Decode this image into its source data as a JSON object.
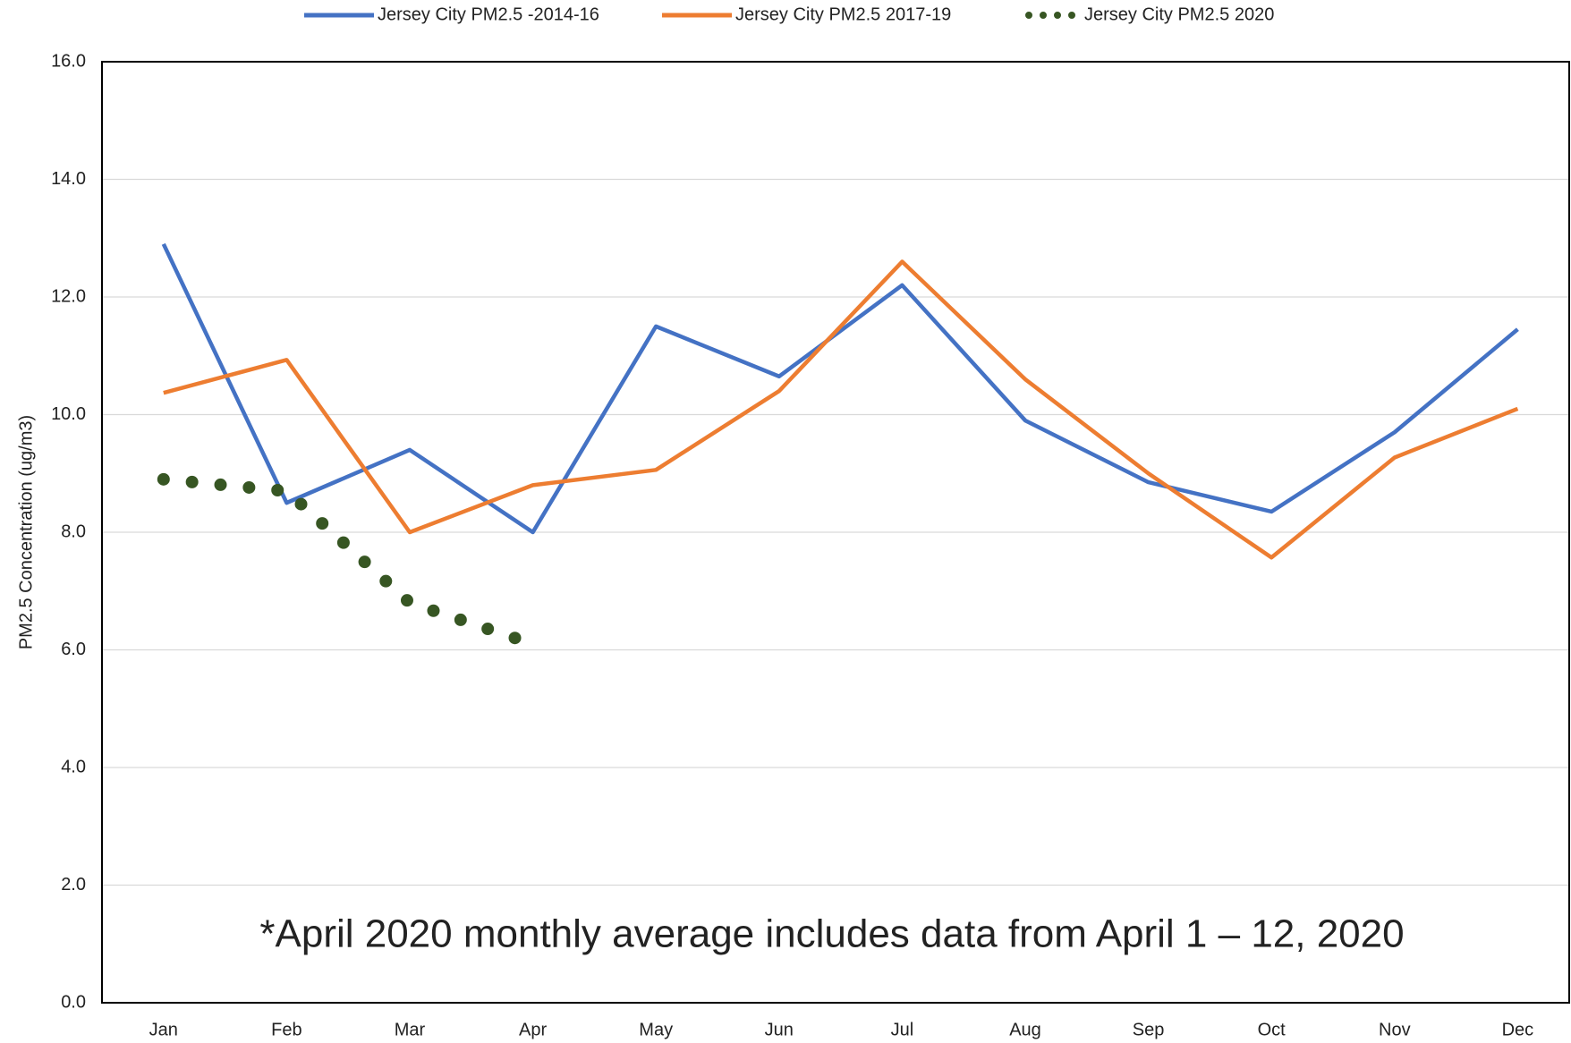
{
  "chart_data": {
    "type": "line",
    "annotation": "*April 2020 monthly average includes data from April 1 – 12, 2020",
    "y_label": "PM2.5 Concentration (ug/m3)",
    "categories": [
      "Jan",
      "Feb",
      "Mar",
      "Apr",
      "May",
      "Jun",
      "Jul",
      "Aug",
      "Sep",
      "Oct",
      "Nov",
      "Dec"
    ],
    "series": [
      {
        "name": "Jersey City PM2.5 -2014-16",
        "color": "#4472c4",
        "style": "solid",
        "values": [
          12.9,
          8.5,
          9.4,
          8.0,
          11.5,
          10.65,
          12.2,
          9.9,
          8.85,
          8.35,
          9.7,
          11.45
        ]
      },
      {
        "name": "Jersey City PM2.5 2017-19",
        "color": "#ed7d31",
        "style": "solid",
        "values": [
          10.37,
          10.93,
          8.0,
          8.8,
          9.06,
          10.4,
          12.6,
          10.6,
          9.0,
          7.57,
          9.27,
          10.1
        ]
      },
      {
        "name": "Jersey City PM2.5 2020",
        "color": "#375623",
        "style": "dotted",
        "values": [
          8.9,
          8.7,
          6.8,
          6.1,
          null,
          null,
          null,
          null,
          null,
          null,
          null,
          null
        ]
      }
    ],
    "ylim": [
      0,
      16
    ],
    "yticks": [
      {
        "value": 0,
        "label": "0.0"
      },
      {
        "value": 2,
        "label": "2.0"
      },
      {
        "value": 4,
        "label": "4.0"
      },
      {
        "value": 6,
        "label": "6.0"
      },
      {
        "value": 8,
        "label": "8.0"
      },
      {
        "value": 10,
        "label": "10.0"
      },
      {
        "value": 12,
        "label": "12.0"
      },
      {
        "value": 14,
        "label": "14.0"
      },
      {
        "value": 16,
        "label": "16.0"
      }
    ],
    "grid": true,
    "legend": "top"
  }
}
